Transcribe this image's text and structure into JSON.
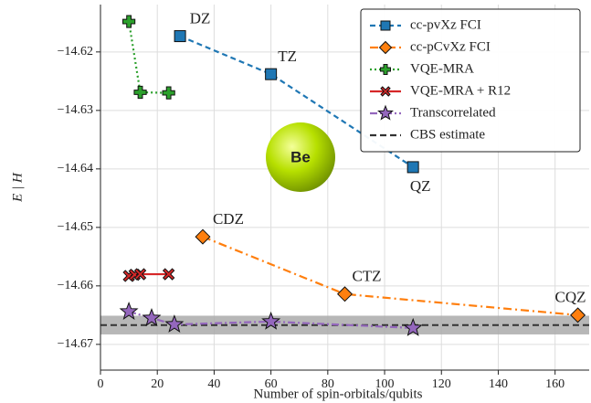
{
  "chart_data": {
    "type": "line",
    "x_label": "Number of spin-orbitals/qubits",
    "y_label": "E | H",
    "annotations": [
      "Be"
    ],
    "xlim": [
      0,
      172
    ],
    "ylim": [
      -14.6744,
      -14.6119
    ],
    "xticks": [
      0,
      20,
      40,
      60,
      80,
      100,
      120,
      140,
      160
    ],
    "yticks": [
      {
        "value": -14.62,
        "label": "−14.62"
      },
      {
        "value": -14.63,
        "label": "−14.63"
      },
      {
        "value": -14.64,
        "label": "−14.64"
      },
      {
        "value": -14.65,
        "label": "−14.65"
      },
      {
        "value": -14.66,
        "label": "−14.66"
      },
      {
        "value": -14.67,
        "label": "−14.67"
      }
    ],
    "grid": true,
    "legend": "upper right",
    "series": [
      {
        "name": "cc-pvXz FCI",
        "color": "#1f77b4",
        "marker": "square",
        "dash": "6,4",
        "x": [
          28,
          60,
          110
        ],
        "values": [
          -14.6173,
          -14.6238,
          -14.6397
        ],
        "point_labels": [
          "DZ",
          "TZ",
          "QZ"
        ]
      },
      {
        "name": "cc-pCvXz FCI",
        "color": "#ff7f0e",
        "marker": "diamond",
        "dash": "9,4,2,4",
        "x": [
          36,
          86,
          168
        ],
        "values": [
          -14.6516,
          -14.6614,
          -14.665
        ],
        "point_labels": [
          "CDZ",
          "CTZ",
          "CQZ"
        ]
      },
      {
        "name": "VQE-MRA",
        "color": "#2ca02c",
        "marker": "plus",
        "dash": "2,3",
        "x": [
          10,
          14,
          24
        ],
        "values": [
          -14.6148,
          -14.6269,
          -14.627
        ]
      },
      {
        "name": "VQE-MRA + R12",
        "color": "#d62728",
        "marker": "x",
        "dash": "",
        "x": [
          10,
          12,
          14,
          24
        ],
        "values": [
          -14.6583,
          -14.6581,
          -14.658,
          -14.658
        ]
      },
      {
        "name": "Transcorrelated",
        "color": "#9467bd",
        "marker": "star",
        "dash": "8,3,2,3",
        "x": [
          10,
          18,
          26,
          60,
          110
        ],
        "values": [
          -14.6644,
          -14.6655,
          -14.6666,
          -14.6661,
          -14.6672
        ]
      }
    ],
    "hlines": [
      {
        "name": "CBS estimate",
        "color": "#333333",
        "y": -14.6667,
        "band": [
          -14.6683,
          -14.6651
        ],
        "band_color": "#aaaaaa"
      }
    ]
  }
}
